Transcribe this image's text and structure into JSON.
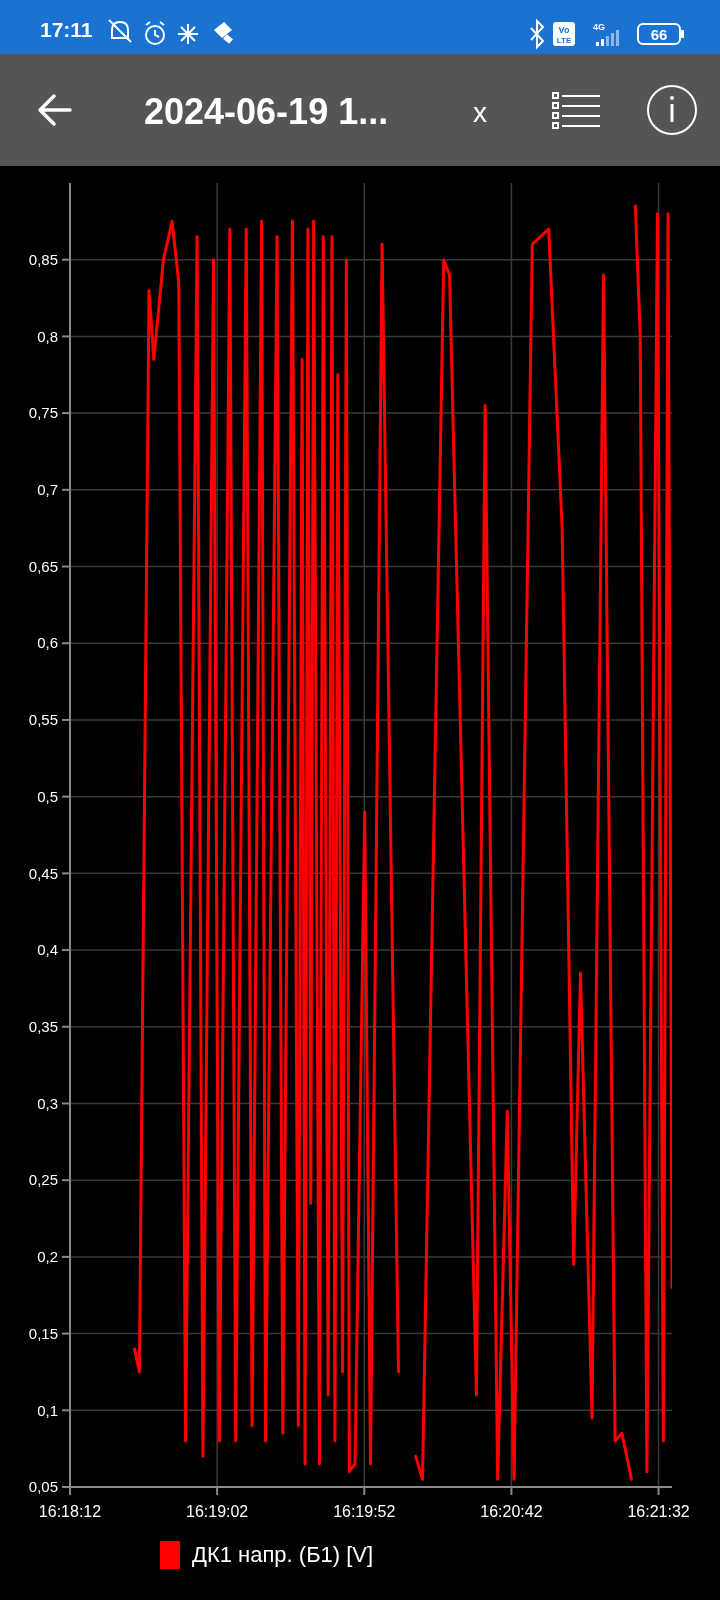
{
  "chart_data": {
    "type": "line",
    "title": "2024-06-19 1...",
    "annotations": [
      "17:11",
      "Vo",
      "LTE",
      "4G",
      "66",
      "x"
    ],
    "x": [
      16.30942,
      16.30988,
      16.31079,
      16.31124,
      16.31215,
      16.31297,
      16.3136,
      16.31424,
      16.31533,
      16.31588,
      16.31688,
      16.31742,
      16.31842,
      16.31897,
      16.31997,
      16.32052,
      16.32142,
      16.32179,
      16.32288,
      16.32342,
      16.32433,
      16.32488,
      16.32524,
      16.32552,
      16.32579,
      16.32606,
      16.32633,
      16.32688,
      16.32724,
      16.3277,
      16.32806,
      16.32834,
      16.32861,
      16.32906,
      16.32942,
      16.3297,
      16.33024,
      16.33115,
      16.3317,
      16.33279,
      16.33434,
      16.335,
      16.33597,
      16.33661,
      16.33861,
      16.33916,
      16.3417,
      16.34252,
      16.3437,
      16.34461,
      16.34525,
      16.34697,
      16.34852,
      16.34979,
      16.35088,
      16.35152,
      16.35261,
      16.3537,
      16.35479,
      16.35543,
      16.35634,
      16.35652,
      16.3567,
      16.35716,
      16.35779,
      16.35879,
      16.35934,
      16.35979,
      16.36016
    ],
    "series": [
      {
        "name": "ДК1 напр. (Б1) [V]",
        "color": "#ff0000",
        "values": [
          0.14,
          0.125,
          0.83,
          0.785,
          0.85,
          0.875,
          0.835,
          0.08,
          0.865,
          0.07,
          0.85,
          0.08,
          0.87,
          0.08,
          0.87,
          0.09,
          0.875,
          0.08,
          0.865,
          0.085,
          0.875,
          0.09,
          0.785,
          0.065,
          0.87,
          0.235,
          0.875,
          0.065,
          0.865,
          0.11,
          0.865,
          0.08,
          0.775,
          0.125,
          0.85,
          0.06,
          0.065,
          0.49,
          0.065,
          0.86,
          0.125,
          null,
          0.07,
          0.055,
          0.85,
          0.84,
          0.11,
          0.755,
          0.055,
          0.295,
          0.055,
          0.86,
          0.87,
          0.675,
          0.195,
          0.385,
          0.095,
          0.84,
          0.08,
          0.085,
          0.055,
          null,
          0.885,
          0.8,
          0.06,
          0.88,
          0.08,
          0.88,
          0.18
        ]
      }
    ],
    "xlim": [
      16.30333,
      16.36016
    ],
    "xticks": [
      {
        "value": 16.30333,
        "label": "16:18:12"
      },
      {
        "value": 16.31722,
        "label": "16:19:02"
      },
      {
        "value": 16.33111,
        "label": "16:19:52"
      },
      {
        "value": 16.345,
        "label": "16:20:42"
      },
      {
        "value": 16.35889,
        "label": "16:21:32"
      }
    ],
    "ylim": [
      0.05,
      0.9
    ],
    "yticks": [
      {
        "value": 0.05,
        "label": "0,05"
      },
      {
        "value": 0.1,
        "label": "0,1"
      },
      {
        "value": 0.15,
        "label": "0,15"
      },
      {
        "value": 0.2,
        "label": "0,2"
      },
      {
        "value": 0.25,
        "label": "0,25"
      },
      {
        "value": 0.3,
        "label": "0,3"
      },
      {
        "value": 0.35,
        "label": "0,35"
      },
      {
        "value": 0.4,
        "label": "0,4"
      },
      {
        "value": 0.45,
        "label": "0,45"
      },
      {
        "value": 0.5,
        "label": "0,5"
      },
      {
        "value": 0.55,
        "label": "0,55"
      },
      {
        "value": 0.6,
        "label": "0,6"
      },
      {
        "value": 0.65,
        "label": "0,65"
      },
      {
        "value": 0.7,
        "label": "0,7"
      },
      {
        "value": 0.75,
        "label": "0,75"
      },
      {
        "value": 0.8,
        "label": "0,8"
      },
      {
        "value": 0.85,
        "label": "0,85"
      }
    ],
    "grid": true,
    "legend": "bottom",
    "line_style": "solid",
    "marker": "none"
  }
}
